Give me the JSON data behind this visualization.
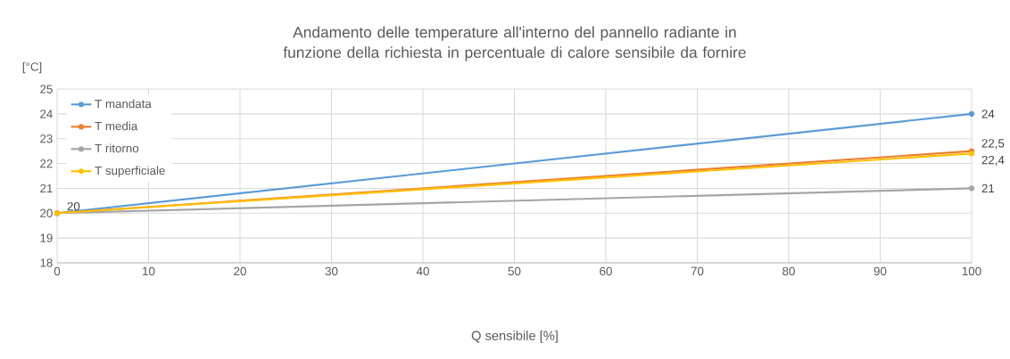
{
  "chart_data": {
    "type": "line",
    "title": "Andamento delle temperature all'interno del pannello radiante in funzione della richiesta in percentuale di calore sensibile da fornire",
    "xlabel": "Q sensibile [%]",
    "ylabel": "[°C]",
    "x": [
      0,
      100
    ],
    "series": [
      {
        "name": "T mandata",
        "color": "#5b9bd5",
        "values": [
          20,
          24
        ],
        "value_labels": [
          null,
          "24"
        ]
      },
      {
        "name": "T media",
        "color": "#ed7d31",
        "values": [
          20,
          22.5
        ],
        "value_labels": [
          null,
          "22,5"
        ]
      },
      {
        "name": "T ritorno",
        "color": "#a5a5a5",
        "values": [
          20,
          21
        ],
        "value_labels": [
          null,
          "21"
        ]
      },
      {
        "name": "T superficiale",
        "color": "#ffc000",
        "values": [
          20,
          22.4
        ],
        "value_labels": [
          "20",
          "22,4"
        ]
      }
    ],
    "xlim": [
      0,
      100
    ],
    "xticks": [
      0,
      10,
      20,
      30,
      40,
      50,
      60,
      70,
      80,
      90,
      100
    ],
    "ylim": [
      18,
      25
    ],
    "yticks": [
      18,
      19,
      20,
      21,
      22,
      23,
      24,
      25
    ],
    "grid": true,
    "legend": "top left",
    "marker": "circle",
    "line_style": "solid"
  }
}
